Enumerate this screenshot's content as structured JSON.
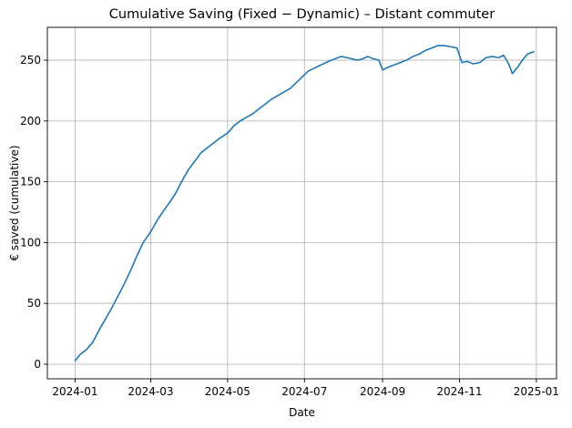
{
  "chart_data": {
    "type": "line",
    "title": "Cumulative Saving (Fixed − Dynamic) – Distant commuter",
    "xlabel": "Date",
    "ylabel": "€ saved (cumulative)",
    "xlim": [
      "2023-12-10",
      "2025-01-17"
    ],
    "ylim": [
      -12,
      277
    ],
    "x_ticks": [
      "2024-01-01",
      "2024-03-01",
      "2024-05-01",
      "2024-07-01",
      "2024-09-01",
      "2024-11-01",
      "2025-01-01"
    ],
    "x_tick_labels": [
      "2024-01",
      "2024-03",
      "2024-05",
      "2024-07",
      "2024-09",
      "2024-11",
      "2025-01"
    ],
    "y_ticks": [
      0,
      50,
      100,
      150,
      200,
      250
    ],
    "grid": true,
    "colors": {
      "line": "#1f77b4"
    },
    "series": [
      {
        "x": [
          "2024-01-01",
          "2024-01-05",
          "2024-01-10",
          "2024-01-15",
          "2024-01-20",
          "2024-01-25",
          "2024-01-30",
          "2024-02-04",
          "2024-02-09",
          "2024-02-14",
          "2024-02-19",
          "2024-02-24",
          "2024-03-01",
          "2024-03-06",
          "2024-03-11",
          "2024-03-16",
          "2024-03-21",
          "2024-03-26",
          "2024-03-31",
          "2024-04-05",
          "2024-04-10",
          "2024-04-15",
          "2024-04-20",
          "2024-04-25",
          "2024-05-01",
          "2024-05-06",
          "2024-05-11",
          "2024-05-16",
          "2024-05-21",
          "2024-05-26",
          "2024-05-31",
          "2024-06-05",
          "2024-06-10",
          "2024-06-15",
          "2024-06-20",
          "2024-06-25",
          "2024-07-01",
          "2024-07-04",
          "2024-07-08",
          "2024-07-12",
          "2024-07-16",
          "2024-07-20",
          "2024-07-25",
          "2024-07-30",
          "2024-08-04",
          "2024-08-08",
          "2024-08-12",
          "2024-08-16",
          "2024-08-20",
          "2024-08-25",
          "2024-08-29",
          "2024-09-01",
          "2024-09-05",
          "2024-09-10",
          "2024-09-15",
          "2024-09-20",
          "2024-09-25",
          "2024-09-30",
          "2024-10-05",
          "2024-10-10",
          "2024-10-15",
          "2024-10-20",
          "2024-10-25",
          "2024-10-30",
          "2024-11-03",
          "2024-11-07",
          "2024-11-12",
          "2024-11-17",
          "2024-11-22",
          "2024-11-27",
          "2024-12-02",
          "2024-12-06",
          "2024-12-10",
          "2024-12-13",
          "2024-12-17",
          "2024-12-21",
          "2024-12-25",
          "2024-12-30"
        ],
        "values": [
          3,
          8,
          12,
          18,
          28,
          37,
          46,
          56,
          66,
          77,
          89,
          100,
          109,
          118,
          126,
          133,
          141,
          151,
          160,
          167,
          174,
          178,
          182,
          186,
          190,
          196,
          200,
          203,
          206,
          210,
          214,
          218,
          221,
          224,
          227,
          232,
          238,
          241,
          243,
          245,
          247,
          249,
          251,
          253,
          252,
          251,
          250,
          251,
          253,
          251,
          250,
          242,
          244,
          246,
          248,
          250,
          253,
          255,
          258,
          260,
          262,
          262,
          261,
          260,
          248,
          249,
          247,
          248,
          252,
          253,
          252,
          254,
          247,
          239,
          244,
          250,
          255,
          257
        ]
      }
    ]
  }
}
